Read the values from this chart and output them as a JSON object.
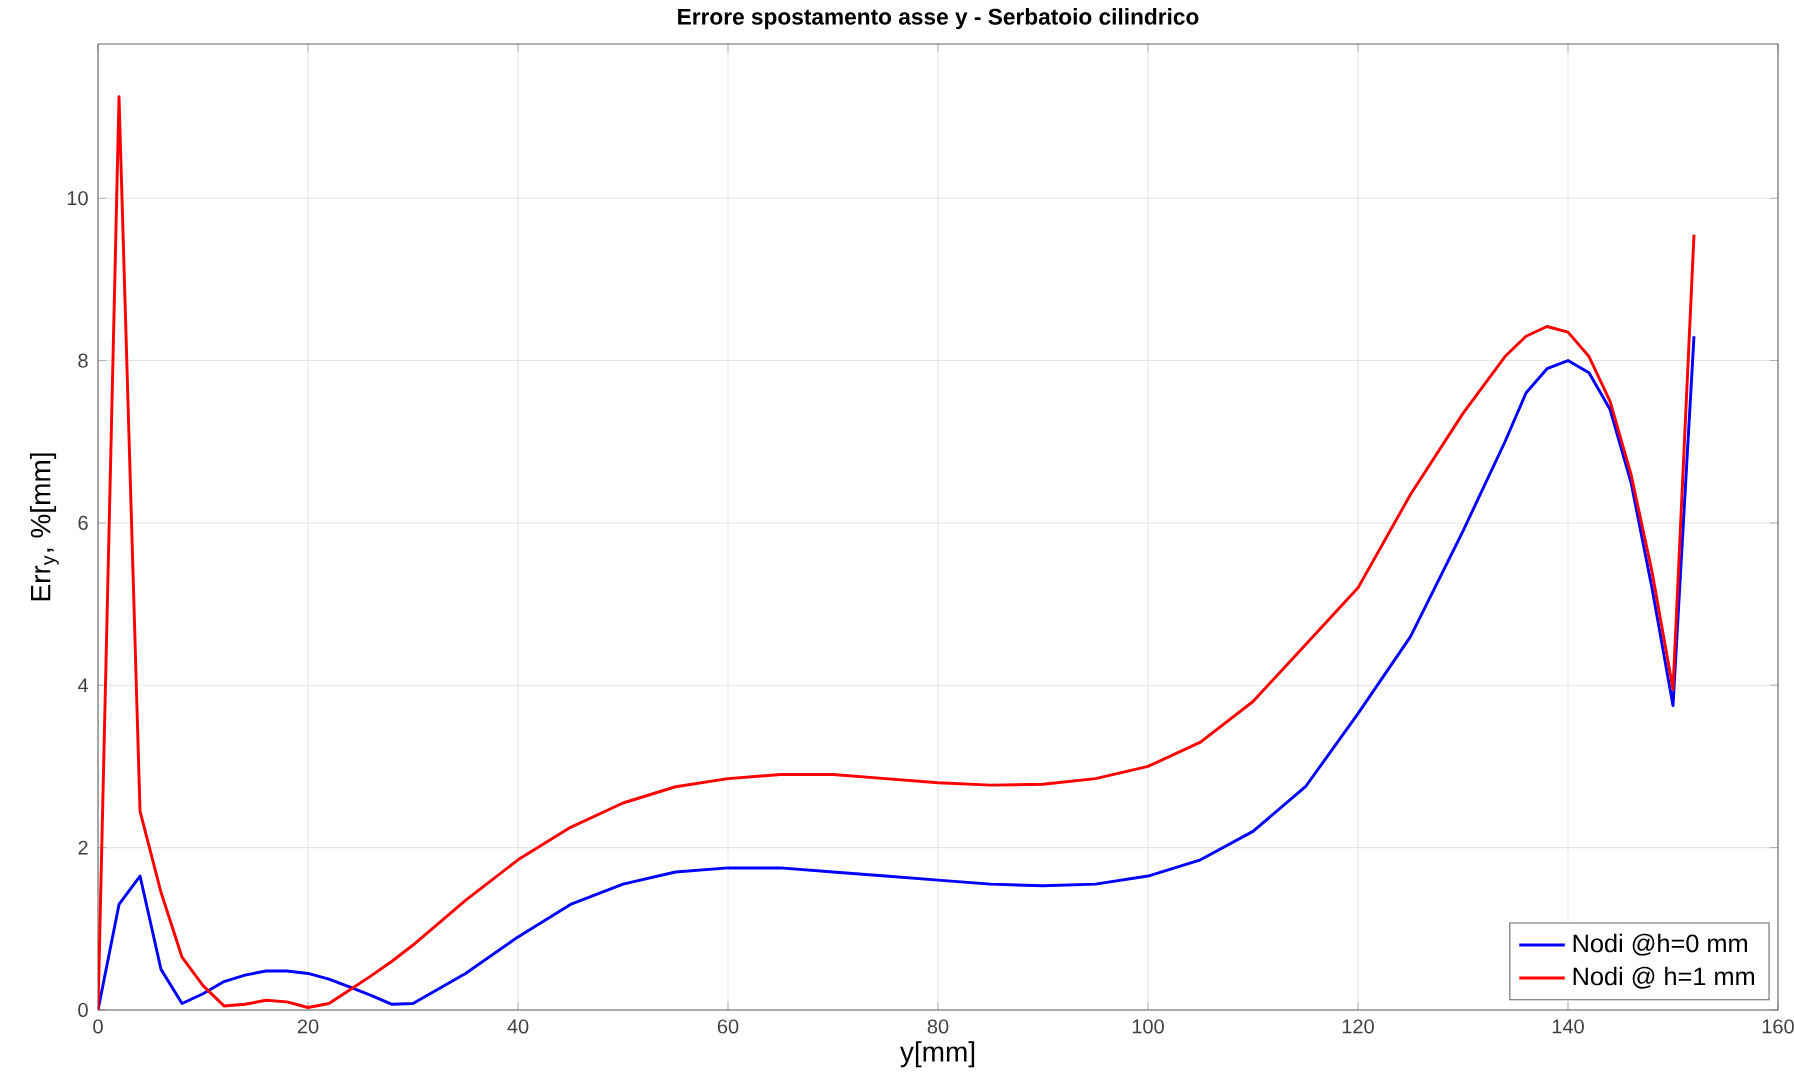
{
  "chart_data": {
    "type": "line",
    "title": "Errore spostamento asse y - Serbatoio cilindrico",
    "xlabel": "y[mm]",
    "ylabel": "Err$_{y}$, %[mm]",
    "xlim": [
      0,
      160
    ],
    "ylim": [
      0,
      11.9
    ],
    "xticks": [
      0,
      20,
      40,
      60,
      80,
      100,
      120,
      140,
      160
    ],
    "yticks": [
      0,
      2,
      4,
      6,
      8,
      10
    ],
    "grid": true,
    "legend": "bottom right",
    "line_style": "solid",
    "marker": "none",
    "series": [
      {
        "name": "Nodi @h=0 mm",
        "color": "#0000ff",
        "x": [
          0,
          2,
          4,
          6,
          8,
          10,
          12,
          14,
          16,
          18,
          20,
          22,
          24,
          26,
          28,
          30,
          35,
          40,
          45,
          50,
          55,
          60,
          65,
          70,
          75,
          80,
          85,
          90,
          95,
          100,
          105,
          110,
          115,
          120,
          125,
          130,
          134,
          136,
          138,
          140,
          142,
          144,
          146,
          148,
          150,
          152
        ],
        "values": [
          0,
          1.3,
          1.65,
          0.5,
          0.08,
          0.2,
          0.35,
          0.43,
          0.48,
          0.48,
          0.45,
          0.38,
          0.28,
          0.18,
          0.07,
          0.08,
          0.45,
          0.9,
          1.3,
          1.55,
          1.7,
          1.75,
          1.75,
          1.7,
          1.65,
          1.6,
          1.55,
          1.53,
          1.55,
          1.65,
          1.85,
          2.2,
          2.75,
          3.65,
          4.6,
          5.9,
          7.0,
          7.6,
          7.9,
          8.0,
          7.85,
          7.4,
          6.5,
          5.2,
          3.75,
          8.3
        ]
      },
      {
        "name": "Nodi @ h=1 mm",
        "color": "#ff0000",
        "x": [
          0,
          2,
          4,
          6,
          8,
          10,
          12,
          14,
          16,
          18,
          20,
          22,
          24,
          26,
          28,
          30,
          35,
          40,
          45,
          50,
          55,
          60,
          65,
          70,
          75,
          80,
          85,
          90,
          95,
          100,
          105,
          110,
          115,
          120,
          125,
          130,
          134,
          136,
          138,
          140,
          142,
          144,
          146,
          148,
          150,
          152
        ],
        "values": [
          0,
          11.25,
          2.45,
          1.45,
          0.65,
          0.3,
          0.05,
          0.07,
          0.12,
          0.1,
          0.03,
          0.08,
          0.25,
          0.42,
          0.6,
          0.8,
          1.35,
          1.85,
          2.25,
          2.55,
          2.75,
          2.85,
          2.9,
          2.9,
          2.85,
          2.8,
          2.77,
          2.78,
          2.85,
          3.0,
          3.3,
          3.8,
          4.5,
          5.2,
          6.35,
          7.35,
          8.05,
          8.3,
          8.42,
          8.35,
          8.05,
          7.5,
          6.6,
          5.4,
          3.95,
          9.55
        ]
      }
    ]
  }
}
